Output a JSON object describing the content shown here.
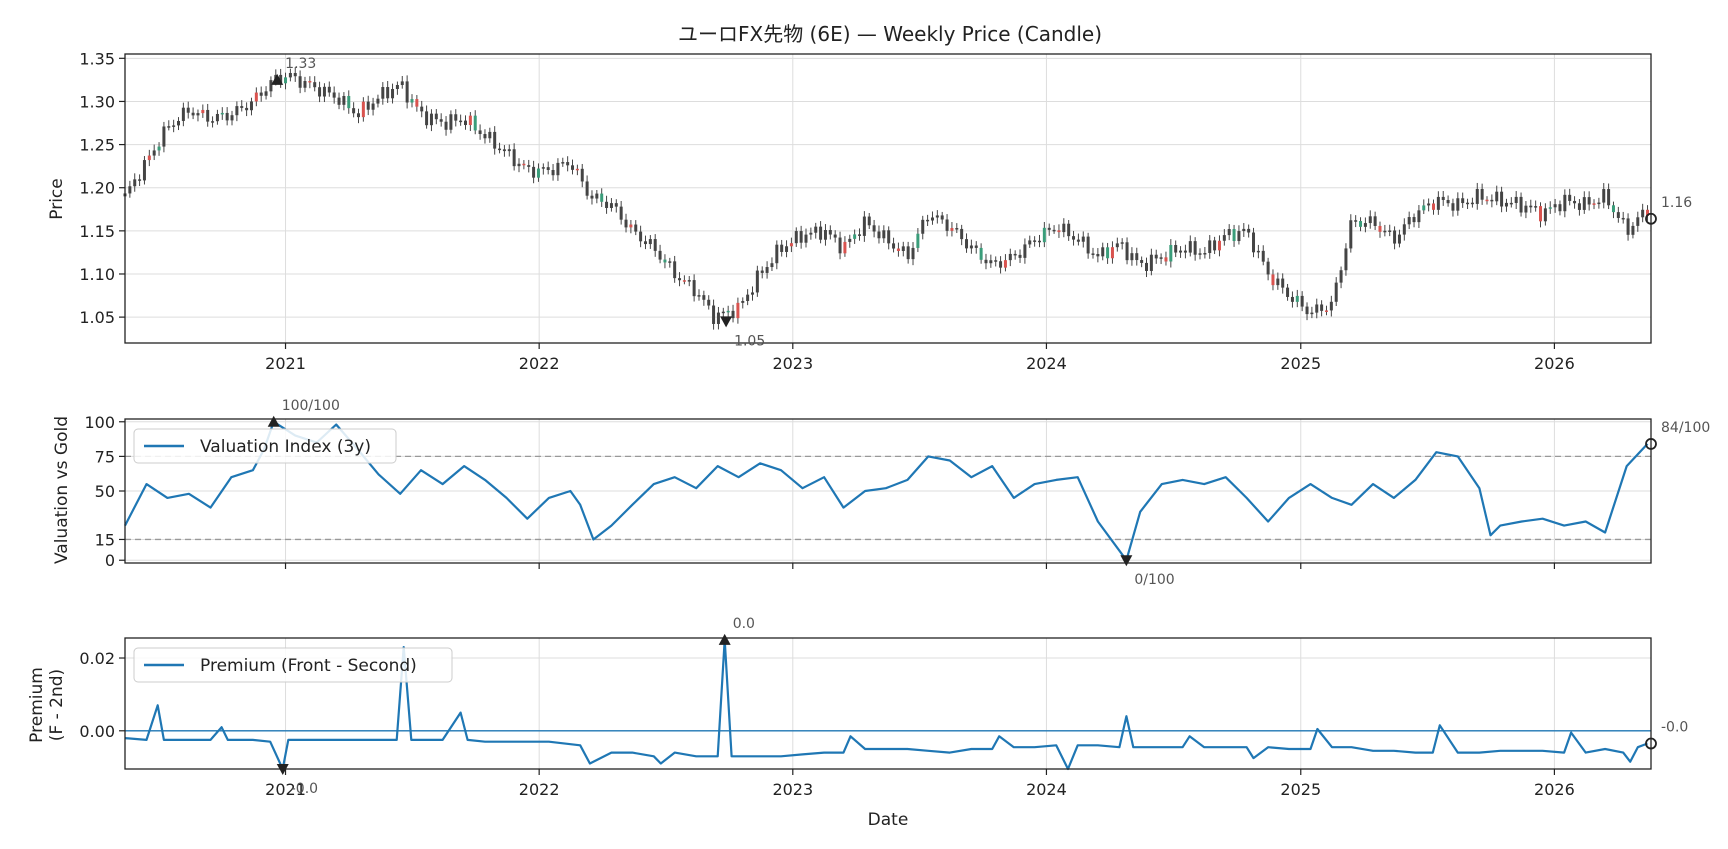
{
  "chart_data": [
    {
      "type": "candlestick",
      "title": "ユーロFX先物 (6E) — Weekly Price (Candle)",
      "xlabel": "",
      "ylabel": "Price",
      "xlim": [
        "2020-05-15",
        "2026-05-20"
      ],
      "ylim": [
        1.02,
        1.355
      ],
      "x_ticks": [
        "2021",
        "2022",
        "2023",
        "2024",
        "2025",
        "2026"
      ],
      "y_ticks": [
        "1.05",
        "1.10",
        "1.15",
        "1.20",
        "1.25",
        "1.30",
        "1.35"
      ],
      "grid": true,
      "close_series": {
        "x": [
          "2020-05-15",
          "2020-06-15",
          "2020-07-15",
          "2020-08-15",
          "2020-09-15",
          "2020-10-15",
          "2020-11-15",
          "2020-12-15",
          "2021-01-05",
          "2021-02-15",
          "2021-03-15",
          "2021-04-15",
          "2021-05-15",
          "2021-06-15",
          "2021-07-15",
          "2021-08-15",
          "2021-09-15",
          "2021-10-15",
          "2021-11-15",
          "2021-12-15",
          "2022-01-15",
          "2022-02-15",
          "2022-03-15",
          "2022-04-15",
          "2022-05-15",
          "2022-06-15",
          "2022-07-15",
          "2022-08-15",
          "2022-09-10",
          "2022-10-15",
          "2022-11-15",
          "2022-12-15",
          "2023-01-15",
          "2023-02-15",
          "2023-03-15",
          "2023-04-15",
          "2023-05-15",
          "2023-06-15",
          "2023-07-15",
          "2023-08-15",
          "2023-09-15",
          "2023-10-15",
          "2023-11-15",
          "2023-12-15",
          "2024-01-15",
          "2024-02-15",
          "2024-03-15",
          "2024-04-15",
          "2024-05-15",
          "2024-06-15",
          "2024-07-15",
          "2024-08-15",
          "2024-09-15",
          "2024-10-15",
          "2024-11-15",
          "2024-12-15",
          "2025-01-15",
          "2025-02-15",
          "2025-03-15",
          "2025-04-15",
          "2025-05-15",
          "2025-06-15",
          "2025-07-15",
          "2025-08-15",
          "2025-09-15",
          "2025-10-15",
          "2025-11-15",
          "2025-12-15",
          "2026-01-15",
          "2026-02-15",
          "2026-03-15",
          "2026-04-15",
          "2026-05-15"
        ],
        "y": [
          1.19,
          1.23,
          1.27,
          1.29,
          1.28,
          1.285,
          1.3,
          1.325,
          1.33,
          1.315,
          1.305,
          1.285,
          1.305,
          1.32,
          1.285,
          1.275,
          1.28,
          1.26,
          1.24,
          1.22,
          1.22,
          1.23,
          1.19,
          1.18,
          1.15,
          1.13,
          1.1,
          1.08,
          1.05,
          1.06,
          1.1,
          1.13,
          1.145,
          1.15,
          1.13,
          1.16,
          1.14,
          1.12,
          1.17,
          1.155,
          1.13,
          1.11,
          1.12,
          1.14,
          1.155,
          1.14,
          1.12,
          1.135,
          1.11,
          1.12,
          1.13,
          1.125,
          1.145,
          1.15,
          1.1,
          1.075,
          1.055,
          1.065,
          1.16,
          1.16,
          1.14,
          1.17,
          1.185,
          1.18,
          1.19,
          1.185,
          1.18,
          1.17,
          1.185,
          1.18,
          1.19,
          1.15,
          1.175
        ]
      },
      "annotations": [
        {
          "label": "1.33",
          "x": "2020-12-20",
          "y": 1.325,
          "marker": "max"
        },
        {
          "label": "1.05",
          "x": "2022-09-27",
          "y": 1.045,
          "marker": "min"
        },
        {
          "label": "1.16",
          "x": "2026-05-20",
          "y": 1.164,
          "marker": "last"
        }
      ]
    },
    {
      "type": "line",
      "xlabel": "",
      "ylabel": "Valuation vs Gold",
      "ylim": [
        -2,
        102
      ],
      "y_ticks": [
        "0",
        "15",
        "50",
        "75",
        "100"
      ],
      "reference_lines": [
        15,
        75
      ],
      "legend": "top-left",
      "series": [
        {
          "name": "Valuation Index (3y)",
          "color": "#1f77b4",
          "x": [
            "2020-05-15",
            "2020-06-15",
            "2020-07-15",
            "2020-08-15",
            "2020-09-15",
            "2020-10-15",
            "2020-11-15",
            "2020-12-01",
            "2020-12-15",
            "2021-01-15",
            "2021-02-15",
            "2021-03-15",
            "2021-04-15",
            "2021-05-15",
            "2021-06-15",
            "2021-07-15",
            "2021-08-15",
            "2021-09-15",
            "2021-10-15",
            "2021-11-15",
            "2021-12-15",
            "2022-01-15",
            "2022-02-15",
            "2022-03-01",
            "2022-03-20",
            "2022-04-15",
            "2022-05-15",
            "2022-06-15",
            "2022-07-15",
            "2022-08-15",
            "2022-09-15",
            "2022-10-15",
            "2022-11-15",
            "2022-12-15",
            "2023-01-15",
            "2023-02-15",
            "2023-03-15",
            "2023-04-15",
            "2023-05-15",
            "2023-06-15",
            "2023-07-15",
            "2023-08-15",
            "2023-09-15",
            "2023-10-15",
            "2023-11-15",
            "2023-12-15",
            "2024-01-15",
            "2024-02-15",
            "2024-03-15",
            "2024-04-25",
            "2024-05-15",
            "2024-06-15",
            "2024-07-15",
            "2024-08-15",
            "2024-09-15",
            "2024-10-15",
            "2024-11-15",
            "2024-12-15",
            "2025-01-15",
            "2025-02-15",
            "2025-03-15",
            "2025-04-15",
            "2025-05-15",
            "2025-06-15",
            "2025-07-15",
            "2025-08-15",
            "2025-09-15",
            "2025-10-01",
            "2025-10-15",
            "2025-11-15",
            "2025-12-15",
            "2026-01-15",
            "2026-02-15",
            "2026-03-15",
            "2026-04-15",
            "2026-05-15"
          ],
          "y": [
            25,
            55,
            45,
            48,
            38,
            60,
            65,
            80,
            100,
            90,
            85,
            98,
            80,
            62,
            48,
            65,
            55,
            68,
            58,
            45,
            30,
            45,
            50,
            40,
            15,
            25,
            40,
            55,
            60,
            52,
            68,
            60,
            70,
            65,
            52,
            60,
            38,
            50,
            52,
            58,
            75,
            72,
            60,
            68,
            45,
            55,
            58,
            60,
            28,
            0,
            35,
            55,
            58,
            55,
            60,
            45,
            28,
            45,
            55,
            45,
            40,
            55,
            45,
            58,
            78,
            75,
            52,
            18,
            25,
            28,
            30,
            25,
            28,
            20,
            68,
            84
          ]
        }
      ],
      "annotations": [
        {
          "label": "100/100",
          "x": "2020-12-15",
          "y": 100,
          "marker": "max"
        },
        {
          "label": "0/100",
          "x": "2024-04-25",
          "y": 0,
          "marker": "min"
        },
        {
          "label": "84/100",
          "x": "2026-05-20",
          "y": 84,
          "marker": "last"
        }
      ]
    },
    {
      "type": "line",
      "xlabel": "Date",
      "ylabel": "Premium\n(F - 2nd)",
      "ylim": [
        -0.0105,
        0.0255
      ],
      "y_ticks": [
        "0.00",
        "0.02"
      ],
      "x_ticks": [
        "2021",
        "2022",
        "2023",
        "2024",
        "2025",
        "2026"
      ],
      "reference_lines": [
        0
      ],
      "legend": "top-left",
      "series": [
        {
          "name": "Premium (Front - Second)",
          "color": "#1f77b4",
          "x": [
            "2020-05-15",
            "2020-06-15",
            "2020-07-01",
            "2020-07-10",
            "2020-08-15",
            "2020-09-15",
            "2020-10-01",
            "2020-10-10",
            "2020-11-15",
            "2020-12-10",
            "2020-12-28",
            "2021-01-05",
            "2021-03-15",
            "2021-04-15",
            "2021-06-10",
            "2021-06-20",
            "2021-07-01",
            "2021-08-15",
            "2021-09-10",
            "2021-09-20",
            "2021-10-15",
            "2021-11-15",
            "2021-12-15",
            "2022-01-15",
            "2022-03-01",
            "2022-03-15",
            "2022-04-15",
            "2022-05-15",
            "2022-06-15",
            "2022-06-25",
            "2022-07-15",
            "2022-08-15",
            "2022-09-15",
            "2022-09-25",
            "2022-10-05",
            "2022-11-15",
            "2022-12-15",
            "2023-01-15",
            "2023-02-15",
            "2023-03-15",
            "2023-03-25",
            "2023-04-15",
            "2023-05-15",
            "2023-06-15",
            "2023-07-15",
            "2023-08-15",
            "2023-09-15",
            "2023-10-15",
            "2023-10-25",
            "2023-11-15",
            "2023-12-15",
            "2024-01-15",
            "2024-02-01",
            "2024-02-15",
            "2024-03-15",
            "2024-04-15",
            "2024-04-25",
            "2024-05-05",
            "2024-06-15",
            "2024-07-15",
            "2024-07-25",
            "2024-08-15",
            "2024-09-15",
            "2024-10-15",
            "2024-10-25",
            "2024-11-15",
            "2024-12-15",
            "2025-01-15",
            "2025-01-25",
            "2025-02-15",
            "2025-03-15",
            "2025-04-15",
            "2025-05-15",
            "2025-06-15",
            "2025-07-10",
            "2025-07-20",
            "2025-08-15",
            "2025-09-15",
            "2025-10-15",
            "2025-11-15",
            "2025-12-15",
            "2026-01-15",
            "2026-01-25",
            "2026-02-15",
            "2026-03-15",
            "2026-04-10",
            "2026-04-20",
            "2026-05-01",
            "2026-05-15"
          ],
          "y": [
            -0.002,
            -0.0025,
            0.007,
            -0.0025,
            -0.0025,
            -0.0025,
            0.001,
            -0.0025,
            -0.0025,
            -0.003,
            -0.0105,
            -0.0025,
            -0.0025,
            -0.0025,
            -0.0025,
            0.023,
            -0.0025,
            -0.0025,
            0.005,
            -0.0025,
            -0.003,
            -0.003,
            -0.003,
            -0.003,
            -0.004,
            -0.009,
            -0.006,
            -0.006,
            -0.007,
            -0.009,
            -0.006,
            -0.007,
            -0.007,
            0.025,
            -0.007,
            -0.007,
            -0.007,
            -0.0065,
            -0.006,
            -0.006,
            -0.0015,
            -0.005,
            -0.005,
            -0.005,
            -0.0055,
            -0.006,
            -0.005,
            -0.005,
            -0.0015,
            -0.0045,
            -0.0045,
            -0.004,
            -0.011,
            -0.004,
            -0.004,
            -0.0045,
            0.004,
            -0.0045,
            -0.0045,
            -0.0045,
            -0.0015,
            -0.0045,
            -0.0045,
            -0.0045,
            -0.0075,
            -0.0045,
            -0.005,
            -0.005,
            0.0005,
            -0.0045,
            -0.0045,
            -0.0055,
            -0.0055,
            -0.006,
            -0.006,
            0.0015,
            -0.006,
            -0.006,
            -0.0055,
            -0.0055,
            -0.0055,
            -0.006,
            -0.0005,
            -0.006,
            -0.005,
            -0.006,
            -0.0085,
            -0.0045,
            -0.0035
          ]
        }
      ],
      "annotations": [
        {
          "label": "0.0",
          "x": "2022-09-25",
          "y": 0.025,
          "marker": "max"
        },
        {
          "label": "-0.0",
          "x": "2020-12-28",
          "y": -0.0105,
          "marker": "min"
        },
        {
          "label": "-0.0",
          "x": "2026-05-20",
          "y": -0.0035,
          "marker": "last"
        }
      ]
    }
  ]
}
